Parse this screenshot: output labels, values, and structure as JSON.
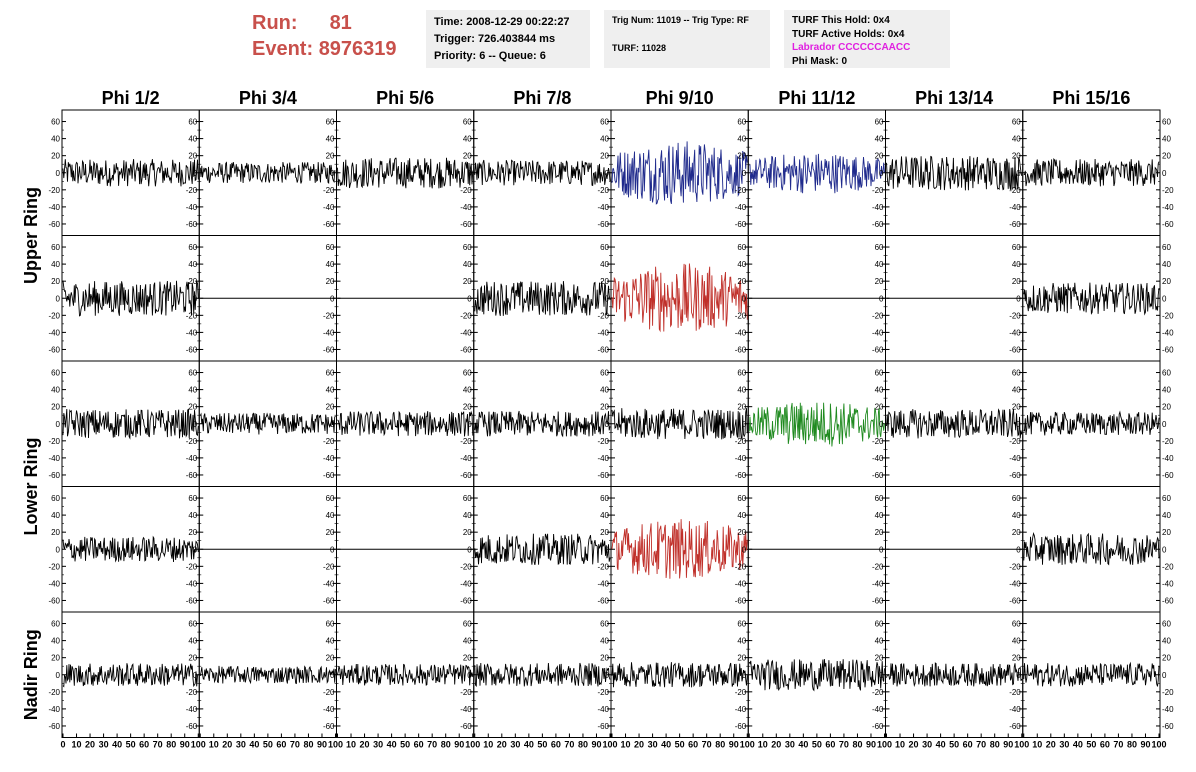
{
  "header": {
    "run_label": "Run:",
    "run_value": "81",
    "event_label": "Event:",
    "event_value": "8976319"
  },
  "info_time": {
    "time": "Time: 2008-12-29 00:22:27",
    "trigger": "Trigger: 726.403844 ms",
    "priority": "Priority: 6 -- Queue: 6"
  },
  "info_trig": {
    "trig": "Trig Num: 11019 -- Trig Type: RF",
    "turf": "TURF: 11028"
  },
  "info_turf": {
    "this_hold": "TURF This Hold: 0x4",
    "active_holds": "TURF Active Holds: 0x4",
    "labrador": "Labrador CCCCCCAACC",
    "phi_mask": "Phi Mask: 0"
  },
  "colors": {
    "run": "#c8504b",
    "labrador": "#e020e0",
    "trace_default": "#000000",
    "trace_blue": "#1f2a8c",
    "trace_red": "#c0302a",
    "trace_green": "#1f8a1f"
  },
  "chart_data": {
    "type": "line",
    "columns": [
      "Phi 1/2",
      "Phi 3/4",
      "Phi 5/6",
      "Phi 7/8",
      "Phi 9/10",
      "Phi 11/12",
      "Phi 13/14",
      "Phi 15/16"
    ],
    "ring_labels": [
      "Upper Ring",
      "Lower Ring",
      "Nadir Ring"
    ],
    "ylim": [
      -70,
      70
    ],
    "y_ticks": [
      "60",
      "40",
      "20",
      "0",
      "-20",
      "-40",
      "-60"
    ],
    "xlim": [
      0,
      100
    ],
    "x_ticks": [
      "0",
      "10",
      "20",
      "30",
      "40",
      "50",
      "60",
      "70",
      "80",
      "90",
      "100"
    ],
    "grid": false,
    "panels": [
      [
        {
          "amp": 14,
          "color": "black"
        },
        {
          "amp": 11,
          "color": "black"
        },
        {
          "amp": 16,
          "color": "black"
        },
        {
          "amp": 13,
          "color": "black"
        },
        {
          "amp": 28,
          "color": "blue"
        },
        {
          "amp": 18,
          "color": "blue"
        },
        {
          "amp": 18,
          "color": "black"
        },
        {
          "amp": 14,
          "color": "black"
        }
      ],
      [
        {
          "amp": 18,
          "color": "black"
        },
        {
          "amp": 0,
          "color": "black"
        },
        {
          "amp": 0,
          "color": "black"
        },
        {
          "amp": 18,
          "color": "black"
        },
        {
          "amp": 30,
          "color": "red"
        },
        {
          "amp": 0,
          "color": "black"
        },
        {
          "amp": 0,
          "color": "black"
        },
        {
          "amp": 16,
          "color": "black"
        }
      ],
      [
        {
          "amp": 15,
          "color": "black"
        },
        {
          "amp": 11,
          "color": "black"
        },
        {
          "amp": 13,
          "color": "black"
        },
        {
          "amp": 13,
          "color": "black"
        },
        {
          "amp": 16,
          "color": "black"
        },
        {
          "amp": 20,
          "color": "green"
        },
        {
          "amp": 15,
          "color": "black"
        },
        {
          "amp": 12,
          "color": "black"
        }
      ],
      [
        {
          "amp": 13,
          "color": "black"
        },
        {
          "amp": 0,
          "color": "black"
        },
        {
          "amp": 0,
          "color": "black"
        },
        {
          "amp": 16,
          "color": "black"
        },
        {
          "amp": 26,
          "color": "red"
        },
        {
          "amp": 0,
          "color": "black"
        },
        {
          "amp": 0,
          "color": "black"
        },
        {
          "amp": 16,
          "color": "black"
        }
      ],
      [
        {
          "amp": 12,
          "color": "black"
        },
        {
          "amp": 9,
          "color": "black"
        },
        {
          "amp": 11,
          "color": "black"
        },
        {
          "amp": 12,
          "color": "black"
        },
        {
          "amp": 13,
          "color": "black"
        },
        {
          "amp": 16,
          "color": "black"
        },
        {
          "amp": 12,
          "color": "black"
        },
        {
          "amp": 12,
          "color": "black"
        }
      ]
    ]
  }
}
